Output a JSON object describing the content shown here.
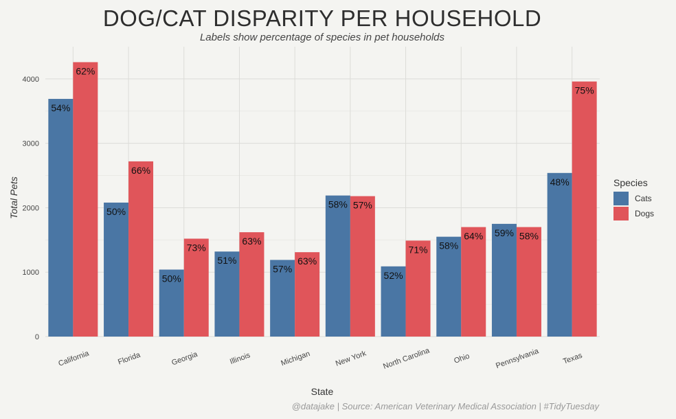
{
  "chart_data": {
    "type": "bar",
    "title": "DOG/CAT DISPARITY PER HOUSEHOLD",
    "subtitle": "Labels show percentage of species in pet households",
    "xlabel": "State",
    "ylabel": "Total Pets",
    "caption": "@datajake | Source: American Veterinary Medical Association | #TidyTuesday",
    "ylim": [
      0,
      4500
    ],
    "yticks": [
      0,
      1000,
      2000,
      3000,
      4000
    ],
    "grid": true,
    "legend": {
      "title": "Species",
      "position": "right"
    },
    "categories": [
      "California",
      "Florida",
      "Georgia",
      "Illinois",
      "Michigan",
      "New York",
      "North Carolina",
      "Ohio",
      "Pennsylvania",
      "Texas"
    ],
    "series": [
      {
        "name": "Cats",
        "color": "#4a76a4",
        "values": [
          3690,
          2080,
          1040,
          1320,
          1190,
          2190,
          1090,
          1550,
          1750,
          2540
        ],
        "labels": [
          "54%",
          "50%",
          "50%",
          "51%",
          "57%",
          "58%",
          "52%",
          "58%",
          "59%",
          "48%"
        ]
      },
      {
        "name": "Dogs",
        "color": "#e0555a",
        "values": [
          4260,
          2720,
          1520,
          1620,
          1310,
          2180,
          1490,
          1700,
          1700,
          3960
        ],
        "labels": [
          "62%",
          "66%",
          "73%",
          "63%",
          "63%",
          "57%",
          "71%",
          "64%",
          "58%",
          "75%"
        ]
      }
    ]
  }
}
